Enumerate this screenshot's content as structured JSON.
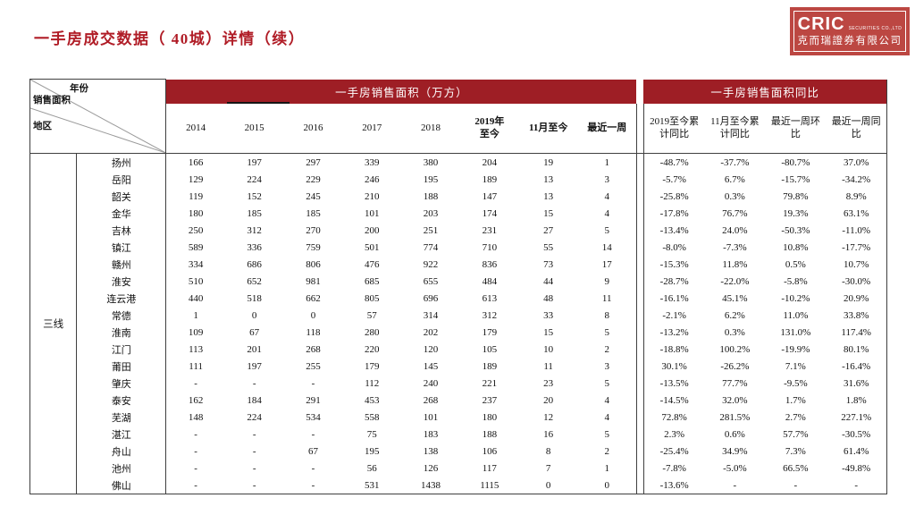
{
  "page": {
    "title": "一手房成交数据（ 40城）详情（续）"
  },
  "logo": {
    "brand": "CRIC",
    "suffix": "SECURITIES CO.,LTD",
    "company": "克而瑞證券有限公司"
  },
  "colors": {
    "band_red": "#9E1E25",
    "title_red": "#B01C26",
    "logo_red": "#BC4742"
  },
  "table": {
    "corner": {
      "year": "年份",
      "sales_area": "销售面积",
      "region": "地区"
    },
    "group1_title": "一手房销售面积（万方）",
    "group2_title": "一手房销售面积同比",
    "area_columns": [
      "2014",
      "2015",
      "2016",
      "2017",
      "2018",
      "2019年\n至今",
      "11月至今",
      "最近一周"
    ],
    "pct_columns": [
      "2019至今累\n计同比",
      "11月至今累\n计同比",
      "最近一周环\n比",
      "最近一周同\n比"
    ],
    "tier_label": "三线",
    "rows": [
      {
        "city": "扬州",
        "values": [
          "166",
          "197",
          "297",
          "339",
          "380",
          "204",
          "19",
          "1",
          "-48.7%",
          "-37.7%",
          "-80.7%",
          "37.0%"
        ]
      },
      {
        "city": "岳阳",
        "values": [
          "129",
          "224",
          "229",
          "246",
          "195",
          "189",
          "13",
          "3",
          "-5.7%",
          "6.7%",
          "-15.7%",
          "-34.2%"
        ]
      },
      {
        "city": "韶关",
        "values": [
          "119",
          "152",
          "245",
          "210",
          "188",
          "147",
          "13",
          "4",
          "-25.8%",
          "0.3%",
          "79.8%",
          "8.9%"
        ]
      },
      {
        "city": "金华",
        "values": [
          "180",
          "185",
          "185",
          "101",
          "203",
          "174",
          "15",
          "4",
          "-17.8%",
          "76.7%",
          "19.3%",
          "63.1%"
        ]
      },
      {
        "city": "吉林",
        "values": [
          "250",
          "312",
          "270",
          "200",
          "251",
          "231",
          "27",
          "5",
          "-13.4%",
          "24.0%",
          "-50.3%",
          "-11.0%"
        ]
      },
      {
        "city": "镇江",
        "values": [
          "589",
          "336",
          "759",
          "501",
          "774",
          "710",
          "55",
          "14",
          "-8.0%",
          "-7.3%",
          "10.8%",
          "-17.7%"
        ]
      },
      {
        "city": "赣州",
        "values": [
          "334",
          "686",
          "806",
          "476",
          "922",
          "836",
          "73",
          "17",
          "-15.3%",
          "11.8%",
          "0.5%",
          "10.7%"
        ]
      },
      {
        "city": "淮安",
        "values": [
          "510",
          "652",
          "981",
          "685",
          "655",
          "484",
          "44",
          "9",
          "-28.7%",
          "-22.0%",
          "-5.8%",
          "-30.0%"
        ]
      },
      {
        "city": "连云港",
        "values": [
          "440",
          "518",
          "662",
          "805",
          "696",
          "613",
          "48",
          "11",
          "-16.1%",
          "45.1%",
          "-10.2%",
          "20.9%"
        ]
      },
      {
        "city": "常德",
        "values": [
          "1",
          "0",
          "0",
          "57",
          "314",
          "312",
          "33",
          "8",
          "-2.1%",
          "6.2%",
          "11.0%",
          "33.8%"
        ]
      },
      {
        "city": "淮南",
        "values": [
          "109",
          "67",
          "118",
          "280",
          "202",
          "179",
          "15",
          "5",
          "-13.2%",
          "0.3%",
          "131.0%",
          "117.4%"
        ]
      },
      {
        "city": "江门",
        "values": [
          "113",
          "201",
          "268",
          "220",
          "120",
          "105",
          "10",
          "2",
          "-18.8%",
          "100.2%",
          "-19.9%",
          "80.1%"
        ]
      },
      {
        "city": "莆田",
        "values": [
          "111",
          "197",
          "255",
          "179",
          "145",
          "189",
          "11",
          "3",
          "30.1%",
          "-26.2%",
          "7.1%",
          "-16.4%"
        ]
      },
      {
        "city": "肇庆",
        "values": [
          "-",
          "-",
          "-",
          "112",
          "240",
          "221",
          "23",
          "5",
          "-13.5%",
          "77.7%",
          "-9.5%",
          "31.6%"
        ]
      },
      {
        "city": "泰安",
        "values": [
          "162",
          "184",
          "291",
          "453",
          "268",
          "237",
          "20",
          "4",
          "-14.5%",
          "32.0%",
          "1.7%",
          "1.8%"
        ]
      },
      {
        "city": "芜湖",
        "values": [
          "148",
          "224",
          "534",
          "558",
          "101",
          "180",
          "12",
          "4",
          "72.8%",
          "281.5%",
          "2.7%",
          "227.1%"
        ]
      },
      {
        "city": "湛江",
        "values": [
          "-",
          "-",
          "-",
          "75",
          "183",
          "188",
          "16",
          "5",
          "2.3%",
          "0.6%",
          "57.7%",
          "-30.5%"
        ]
      },
      {
        "city": "舟山",
        "values": [
          "-",
          "-",
          "67",
          "195",
          "138",
          "106",
          "8",
          "2",
          "-25.4%",
          "34.9%",
          "7.3%",
          "61.4%"
        ]
      },
      {
        "city": "池州",
        "values": [
          "-",
          "-",
          "-",
          "56",
          "126",
          "117",
          "7",
          "1",
          "-7.8%",
          "-5.0%",
          "66.5%",
          "-49.8%"
        ]
      },
      {
        "city": "佛山",
        "values": [
          "-",
          "-",
          "-",
          "531",
          "1438",
          "1115",
          "0",
          "0",
          "-13.6%",
          "-",
          "-",
          "-"
        ]
      }
    ]
  }
}
